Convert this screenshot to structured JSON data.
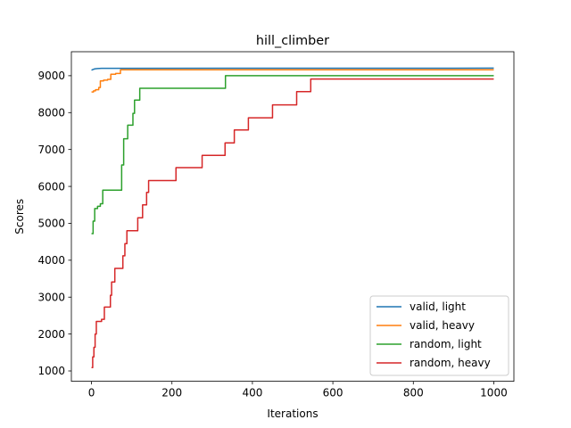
{
  "chart_data": {
    "type": "line",
    "title": "hill_climber",
    "xlabel": "Iterations",
    "ylabel": "Scores",
    "xlim": [
      -50,
      1050
    ],
    "ylim": [
      720,
      9650
    ],
    "xticks": [
      0,
      200,
      400,
      600,
      800,
      1000
    ],
    "yticks": [
      1000,
      2000,
      3000,
      4000,
      5000,
      6000,
      7000,
      8000,
      9000
    ],
    "grid": false,
    "legend_position": "lower right",
    "series": [
      {
        "name": "valid, light",
        "color": "#1f77b4",
        "step": false,
        "points": [
          [
            0,
            9150
          ],
          [
            3,
            9165
          ],
          [
            8,
            9185
          ],
          [
            15,
            9195
          ],
          [
            25,
            9200
          ],
          [
            1000,
            9205
          ]
        ]
      },
      {
        "name": "valid, heavy",
        "color": "#ff7f0e",
        "step": true,
        "points": [
          [
            0,
            8560
          ],
          [
            5,
            8590
          ],
          [
            10,
            8620
          ],
          [
            18,
            8680
          ],
          [
            22,
            8860
          ],
          [
            30,
            8880
          ],
          [
            40,
            8900
          ],
          [
            48,
            9040
          ],
          [
            60,
            9060
          ],
          [
            72,
            9160
          ],
          [
            1000,
            9160
          ]
        ]
      },
      {
        "name": "random, light",
        "color": "#2ca02c",
        "step": true,
        "points": [
          [
            0,
            4720
          ],
          [
            4,
            5060
          ],
          [
            8,
            5400
          ],
          [
            15,
            5460
          ],
          [
            22,
            5530
          ],
          [
            28,
            5900
          ],
          [
            75,
            6580
          ],
          [
            80,
            7290
          ],
          [
            90,
            7660
          ],
          [
            103,
            7980
          ],
          [
            107,
            8340
          ],
          [
            120,
            8660
          ],
          [
            333,
            9000
          ],
          [
            1000,
            9000
          ]
        ]
      },
      {
        "name": "random, heavy",
        "color": "#d62728",
        "step": true,
        "points": [
          [
            0,
            1090
          ],
          [
            3,
            1380
          ],
          [
            6,
            1640
          ],
          [
            9,
            2000
          ],
          [
            12,
            2340
          ],
          [
            25,
            2400
          ],
          [
            32,
            2730
          ],
          [
            47,
            3050
          ],
          [
            50,
            3410
          ],
          [
            58,
            3780
          ],
          [
            78,
            4120
          ],
          [
            83,
            4450
          ],
          [
            88,
            4800
          ],
          [
            115,
            5150
          ],
          [
            127,
            5500
          ],
          [
            137,
            5840
          ],
          [
            142,
            6160
          ],
          [
            210,
            6510
          ],
          [
            275,
            6840
          ],
          [
            332,
            7180
          ],
          [
            355,
            7530
          ],
          [
            390,
            7860
          ],
          [
            450,
            8210
          ],
          [
            510,
            8570
          ],
          [
            545,
            8910
          ],
          [
            1000,
            8910
          ]
        ]
      }
    ]
  }
}
